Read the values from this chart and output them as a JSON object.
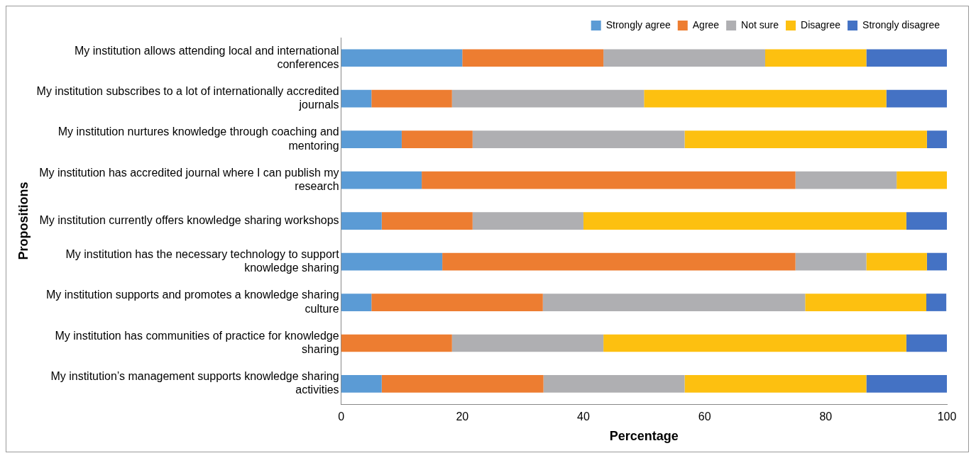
{
  "chart_data": {
    "type": "bar",
    "orientation": "horizontal",
    "stacked": true,
    "xlabel": "Percentage",
    "ylabel": "Propositions",
    "categories": [
      "My institution allows attending local and international conferences",
      "My institution subscribes to a lot of internationally accredited journals",
      "My institution nurtures knowledge through coaching and mentoring",
      "My institution has accredited journal where I can publish my research",
      "My institution currently offers knowledge sharing workshops",
      "My institution has the necessary technology to support knowledge sharing",
      "My institution supports and promotes a knowledge sharing culture",
      "My institution has communities of practice for knowledge sharing",
      "My institution’s management supports knowledge sharing activities"
    ],
    "series": [
      {
        "name": "Strongly agree",
        "color": "#5b9bd5",
        "values": [
          20,
          5,
          10,
          13.3,
          6.7,
          16.7,
          5,
          0,
          6.7
        ]
      },
      {
        "name": "Agree",
        "color": "#ed7d31",
        "values": [
          23.3,
          13.3,
          11.7,
          61.7,
          15,
          58.3,
          28.3,
          18.3,
          26.7
        ]
      },
      {
        "name": "Not sure",
        "color": "#afafb2",
        "values": [
          26.7,
          31.7,
          35,
          16.7,
          18.3,
          11.7,
          43.3,
          25,
          23.3
        ]
      },
      {
        "name": "Disagree",
        "color": "#fdc010",
        "values": [
          16.7,
          40,
          40,
          8.3,
          53.3,
          10,
          20,
          50,
          30
        ]
      },
      {
        "name": "Strongly disagree",
        "color": "#4472c4",
        "values": [
          13.3,
          10,
          3.3,
          0,
          6.7,
          3.3,
          3.3,
          6.7,
          13.3
        ]
      }
    ],
    "xlim": [
      0,
      100
    ],
    "xticks": [
      0,
      20,
      40,
      60,
      80,
      100
    ],
    "grid": false,
    "legend": "top right"
  }
}
